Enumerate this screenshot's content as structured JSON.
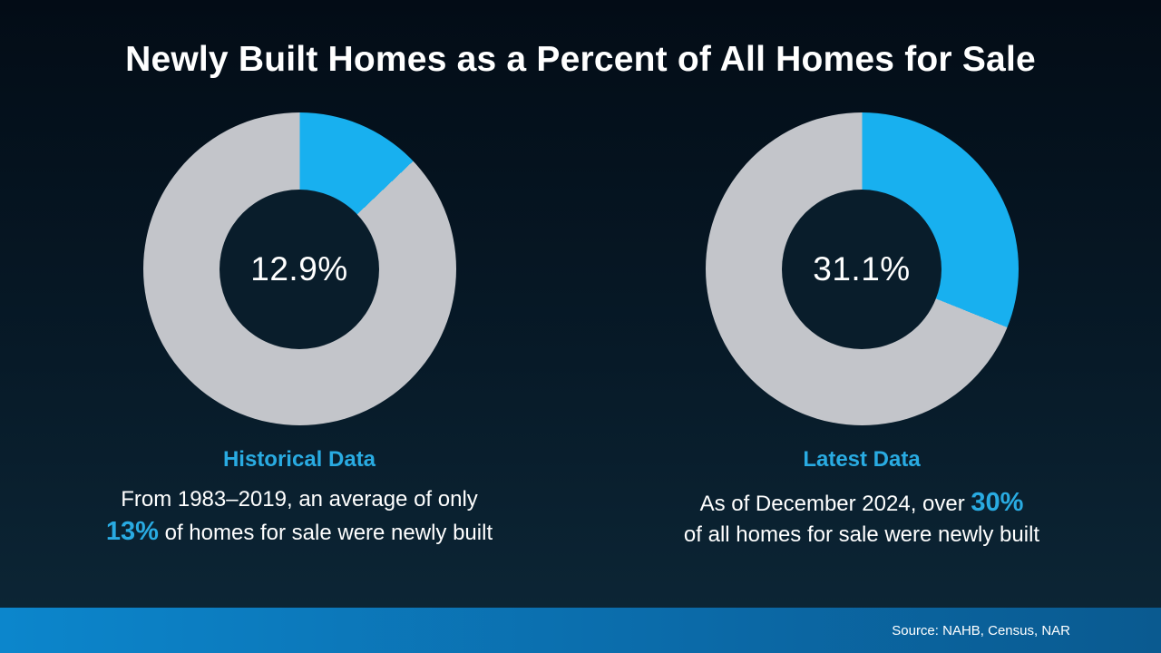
{
  "title": "Newly Built Homes as a Percent of All Homes for Sale",
  "accent_color": "#29abe2",
  "chart_data": [
    {
      "type": "pie",
      "variant": "donut",
      "id": "historical",
      "value_pct": 12.9,
      "center_label": "12.9%",
      "label": "Historical Data",
      "segment_color": "#18b0ef",
      "remainder_color": "#c3c5ca",
      "start_angle_deg": 0,
      "caption": {
        "line1": "From 1983–2019, an average of only",
        "line2_highlight": "13%",
        "line2_rest": " of homes for sale were newly built"
      }
    },
    {
      "type": "pie",
      "variant": "donut",
      "id": "latest",
      "value_pct": 31.1,
      "center_label": "31.1%",
      "label": "Latest Data",
      "segment_color": "#18b0ef",
      "remainder_color": "#c3c5ca",
      "start_angle_deg": 0,
      "caption": {
        "line1_pre": "As of December 2024, over ",
        "line1_highlight": "30%",
        "line2": "of all homes for sale were newly built"
      }
    }
  ],
  "footer": {
    "source": "Source: NAHB, Census, NAR"
  }
}
